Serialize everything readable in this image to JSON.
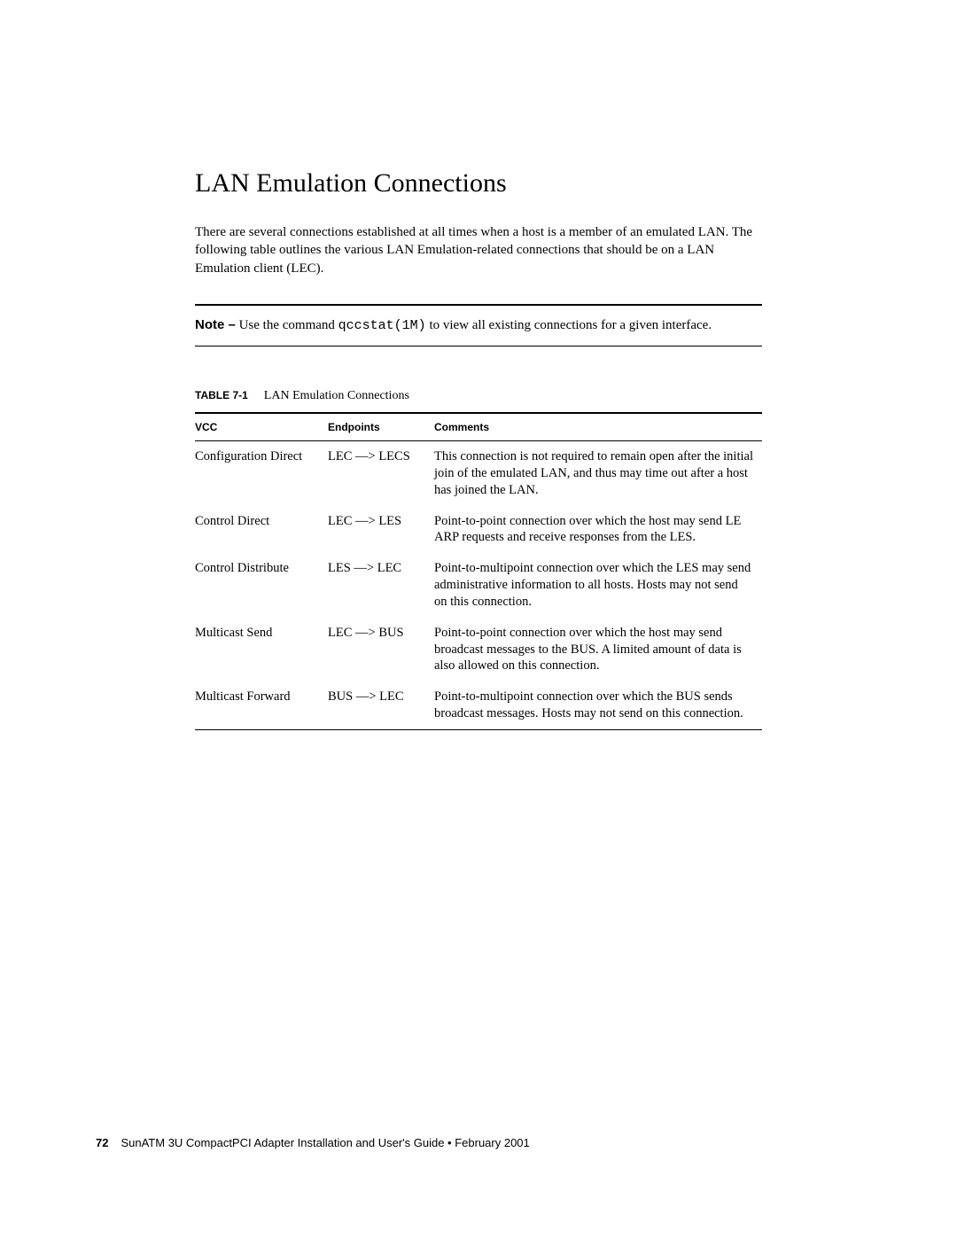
{
  "heading": "LAN Emulation Connections",
  "intro": "There are several connections established at all times when a host is a member of an emulated LAN. The following table outlines the various LAN Emulation-related connections that should be on a LAN Emulation client (LEC).",
  "note": {
    "label": "Note –",
    "before_cmd": " Use the command ",
    "command": "qccstat(1M)",
    "after_cmd": " to view all existing connections for a given interface."
  },
  "table": {
    "caption_label": "TABLE 7-1",
    "caption_text": "LAN Emulation Connections",
    "columns": [
      "VCC",
      "Endpoints",
      "Comments"
    ],
    "rows": [
      {
        "vcc": "Configuration Direct",
        "endpoints": "LEC —> LECS",
        "comments": "This connection is not required to remain open after the initial join of the emulated LAN, and thus may time out after a host has joined the LAN."
      },
      {
        "vcc": "Control Direct",
        "endpoints": "LEC —> LES",
        "comments": "Point-to-point connection over which the host may send LE ARP requests and receive responses from the LES."
      },
      {
        "vcc": "Control Distribute",
        "endpoints": "LES —> LEC",
        "comments": "Point-to-multipoint connection over which the LES may send administrative information to all hosts. Hosts may not send on this connection."
      },
      {
        "vcc": "Multicast Send",
        "endpoints": "LEC —> BUS",
        "comments": "Point-to-point connection over which the host may send broadcast messages to the BUS. A limited amount of data is also allowed on this connection."
      },
      {
        "vcc": "Multicast Forward",
        "endpoints": "BUS —> LEC",
        "comments": "Point-to-multipoint connection over which the BUS sends broadcast messages. Hosts may not send on this connection."
      }
    ]
  },
  "footer": {
    "page_number": "72",
    "text": "SunATM 3U CompactPCI Adapter Installation and User's Guide • February 2001"
  }
}
